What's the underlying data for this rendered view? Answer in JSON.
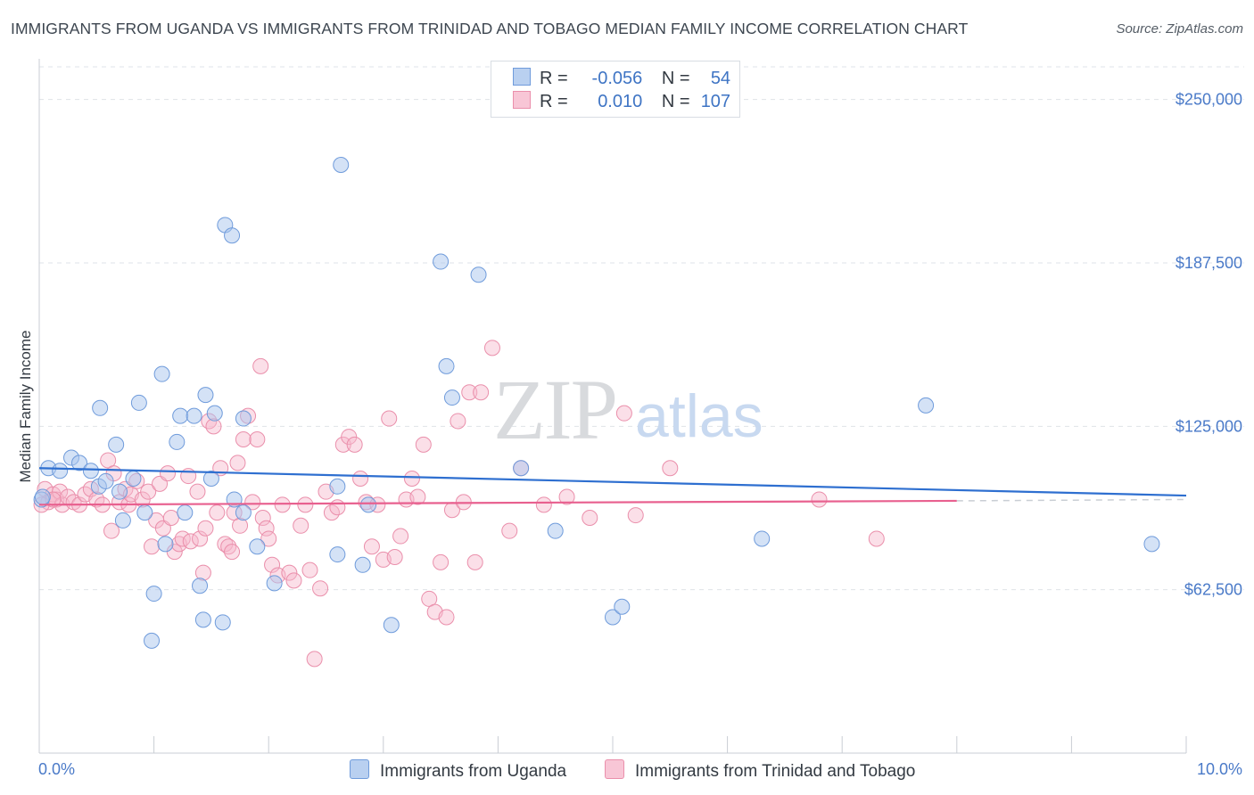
{
  "title": "IMMIGRANTS FROM UGANDA VS IMMIGRANTS FROM TRINIDAD AND TOBAGO MEDIAN FAMILY INCOME CORRELATION CHART",
  "source": "Source: ZipAtlas.com",
  "watermark": {
    "zip": "ZIP",
    "atlas": "atlas"
  },
  "legend": {
    "rows": [
      {
        "r_label": "R =",
        "r_value": "-0.056",
        "n_label": "N =",
        "n_value": "54"
      },
      {
        "r_label": "R =",
        "r_value": "0.010",
        "n_label": "N =",
        "n_value": "107"
      }
    ]
  },
  "bottom_legend": [
    "Immigrants from Uganda",
    "Immigrants from Trinidad and Tobago"
  ],
  "colors": {
    "uganda_fill": "#a9c6ee",
    "uganda_stroke": "#6f9bdb",
    "uganda_line": "#2e6fd0",
    "tt_fill": "#f7b8cb",
    "tt_stroke": "#ea8fab",
    "tt_line": "#e8608f",
    "grid": "#dfe3e8",
    "axis_text": "#4a7ac8"
  },
  "chart_data": {
    "type": "scatter",
    "xlabel": "",
    "ylabel": "Median Family Income",
    "xlim": [
      0,
      10
    ],
    "ylim": [
      0,
      262500
    ],
    "x_tick_labels": [
      "0.0%",
      "10.0%"
    ],
    "y_ticks": [
      62500,
      125000,
      187500,
      250000
    ],
    "y_tick_labels": [
      "$62,500",
      "$125,000",
      "$187,500",
      "$250,000"
    ],
    "legend_position": "top-center",
    "series": [
      {
        "name": "Immigrants from Uganda",
        "R": -0.056,
        "N": 54,
        "trend": {
          "x0": 0.0,
          "y0": 109000,
          "x1": 10.0,
          "y1": 98500
        },
        "points": [
          [
            0.02,
            97000
          ],
          [
            0.08,
            109000
          ],
          [
            0.18,
            108000
          ],
          [
            0.28,
            113000
          ],
          [
            0.35,
            111000
          ],
          [
            0.45,
            108000
          ],
          [
            0.52,
            102000
          ],
          [
            0.58,
            104000
          ],
          [
            0.7,
            100000
          ],
          [
            0.73,
            89000
          ],
          [
            0.53,
            132000
          ],
          [
            0.67,
            118000
          ],
          [
            0.82,
            105000
          ],
          [
            0.92,
            92000
          ],
          [
            0.87,
            134000
          ],
          [
            0.98,
            43000
          ],
          [
            1.0,
            61000
          ],
          [
            1.1,
            80000
          ],
          [
            1.07,
            145000
          ],
          [
            1.2,
            119000
          ],
          [
            1.23,
            129000
          ],
          [
            1.35,
            129000
          ],
          [
            1.27,
            92000
          ],
          [
            1.4,
            64000
          ],
          [
            1.43,
            51000
          ],
          [
            1.45,
            137000
          ],
          [
            1.5,
            105000
          ],
          [
            1.53,
            130000
          ],
          [
            1.6,
            50000
          ],
          [
            1.62,
            202000
          ],
          [
            1.68,
            198000
          ],
          [
            1.7,
            97000
          ],
          [
            1.78,
            92000
          ],
          [
            1.78,
            128000
          ],
          [
            1.9,
            79000
          ],
          [
            2.05,
            65000
          ],
          [
            2.6,
            102000
          ],
          [
            2.6,
            76000
          ],
          [
            2.63,
            225000
          ],
          [
            2.82,
            72000
          ],
          [
            2.87,
            95000
          ],
          [
            3.07,
            49000
          ],
          [
            3.5,
            188000
          ],
          [
            3.55,
            148000
          ],
          [
            3.6,
            136000
          ],
          [
            3.83,
            183000
          ],
          [
            4.2,
            109000
          ],
          [
            4.5,
            85000
          ],
          [
            5.0,
            52000
          ],
          [
            5.08,
            56000
          ],
          [
            6.3,
            82000
          ],
          [
            7.73,
            133000
          ],
          [
            9.7,
            80000
          ],
          [
            0.03,
            98000
          ]
        ]
      },
      {
        "name": "Immigrants from Trinidad and Tobago",
        "R": 0.01,
        "N": 107,
        "trend": {
          "x0": 0.0,
          "y0": 95000,
          "x1": 8.0,
          "y1": 96500
        },
        "dashed_extension": {
          "x0": 8.0,
          "y0": 96500,
          "x1": 10.0,
          "y1": 97000
        },
        "points": [
          [
            0.05,
            101000
          ],
          [
            0.08,
            96000
          ],
          [
            0.12,
            99000
          ],
          [
            0.15,
            97000
          ],
          [
            0.18,
            100000
          ],
          [
            0.2,
            95000
          ],
          [
            0.25,
            98000
          ],
          [
            0.3,
            96000
          ],
          [
            0.35,
            95000
          ],
          [
            0.4,
            99000
          ],
          [
            0.45,
            101000
          ],
          [
            0.5,
            97000
          ],
          [
            0.55,
            95000
          ],
          [
            0.6,
            112000
          ],
          [
            0.63,
            85000
          ],
          [
            0.65,
            107000
          ],
          [
            0.7,
            96000
          ],
          [
            0.75,
            101000
          ],
          [
            0.78,
            95000
          ],
          [
            0.8,
            99000
          ],
          [
            0.85,
            104000
          ],
          [
            0.9,
            97000
          ],
          [
            0.95,
            100000
          ],
          [
            0.98,
            79000
          ],
          [
            1.02,
            89000
          ],
          [
            1.05,
            103000
          ],
          [
            1.08,
            86000
          ],
          [
            1.12,
            107000
          ],
          [
            1.15,
            90000
          ],
          [
            1.18,
            77000
          ],
          [
            1.22,
            80000
          ],
          [
            1.25,
            82000
          ],
          [
            1.3,
            106000
          ],
          [
            1.32,
            81000
          ],
          [
            1.38,
            100000
          ],
          [
            1.4,
            82000
          ],
          [
            1.43,
            69000
          ],
          [
            1.45,
            86000
          ],
          [
            1.48,
            127000
          ],
          [
            1.52,
            125000
          ],
          [
            1.55,
            92000
          ],
          [
            1.58,
            109000
          ],
          [
            1.62,
            80000
          ],
          [
            1.65,
            79000
          ],
          [
            1.68,
            77000
          ],
          [
            1.7,
            92000
          ],
          [
            1.73,
            111000
          ],
          [
            1.75,
            87000
          ],
          [
            1.78,
            120000
          ],
          [
            1.82,
            129000
          ],
          [
            1.86,
            96000
          ],
          [
            1.9,
            120000
          ],
          [
            1.93,
            148000
          ],
          [
            1.95,
            90000
          ],
          [
            1.98,
            86000
          ],
          [
            2.0,
            82000
          ],
          [
            2.03,
            72000
          ],
          [
            2.08,
            68000
          ],
          [
            2.12,
            95000
          ],
          [
            2.18,
            69000
          ],
          [
            2.22,
            66000
          ],
          [
            2.28,
            87000
          ],
          [
            2.32,
            95000
          ],
          [
            2.36,
            70000
          ],
          [
            2.4,
            36000
          ],
          [
            2.45,
            63000
          ],
          [
            2.5,
            100000
          ],
          [
            2.55,
            92000
          ],
          [
            2.6,
            94000
          ],
          [
            2.65,
            118000
          ],
          [
            2.7,
            121000
          ],
          [
            2.75,
            118000
          ],
          [
            2.8,
            105000
          ],
          [
            2.85,
            96000
          ],
          [
            2.9,
            79000
          ],
          [
            2.95,
            95000
          ],
          [
            3.0,
            74000
          ],
          [
            3.05,
            128000
          ],
          [
            3.1,
            75000
          ],
          [
            3.15,
            83000
          ],
          [
            3.2,
            97000
          ],
          [
            3.25,
            105000
          ],
          [
            3.3,
            98000
          ],
          [
            3.35,
            118000
          ],
          [
            3.4,
            59000
          ],
          [
            3.45,
            54000
          ],
          [
            3.5,
            73000
          ],
          [
            3.55,
            52000
          ],
          [
            3.6,
            93000
          ],
          [
            3.65,
            127000
          ],
          [
            3.7,
            96000
          ],
          [
            3.75,
            138000
          ],
          [
            3.8,
            73000
          ],
          [
            3.85,
            138000
          ],
          [
            3.95,
            155000
          ],
          [
            4.1,
            85000
          ],
          [
            4.2,
            109000
          ],
          [
            4.4,
            95000
          ],
          [
            4.6,
            98000
          ],
          [
            4.8,
            90000
          ],
          [
            5.1,
            130000
          ],
          [
            5.2,
            91000
          ],
          [
            5.5,
            109000
          ],
          [
            6.8,
            97000
          ],
          [
            7.3,
            82000
          ],
          [
            0.02,
            95000
          ],
          [
            0.12,
            97000
          ]
        ]
      }
    ]
  }
}
